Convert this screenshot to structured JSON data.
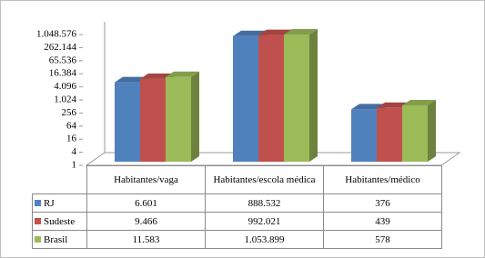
{
  "chart_data": {
    "type": "bar",
    "log_scale": true,
    "grid": false,
    "legend": "table",
    "categories": [
      "Habitantes/vaga",
      "Habitantes/escola médica",
      "Habitantes/médico"
    ],
    "series": [
      {
        "name": "RJ",
        "color": "#4f81bd",
        "values": [
          6601,
          888532,
          376
        ],
        "value_labels": [
          "6.601",
          "888.532",
          "376"
        ]
      },
      {
        "name": "Sudeste",
        "color": "#c0504d",
        "values": [
          9466,
          992021,
          439
        ],
        "value_labels": [
          "9.466",
          "992.021",
          "439"
        ]
      },
      {
        "name": "Brasil",
        "color": "#9bbb59",
        "values": [
          11583,
          1053899,
          578
        ],
        "value_labels": [
          "11.583",
          "1.053.899",
          "578"
        ]
      }
    ],
    "ylim": [
      1,
      1048576
    ],
    "yticks": [
      1,
      4,
      16,
      64,
      256,
      {
        "value": 1024,
        "label": "1.024"
      },
      {
        "value": 4096,
        "label": "4.096"
      },
      {
        "value": 16384,
        "label": "16.384"
      },
      {
        "value": 65536,
        "label": "65.536"
      },
      {
        "value": 262144,
        "label": "262.144"
      },
      {
        "value": 1048576,
        "label": "1.048.576"
      }
    ]
  }
}
